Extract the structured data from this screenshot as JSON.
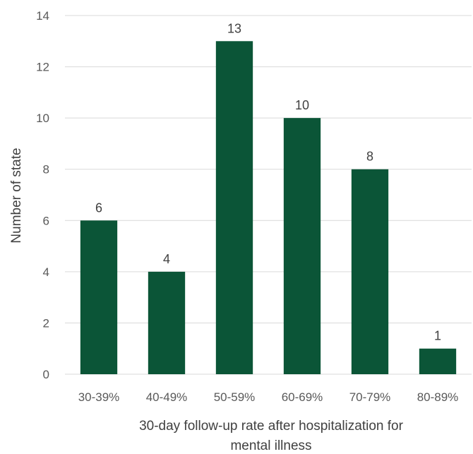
{
  "chart_data": {
    "type": "bar",
    "categories": [
      "30-39%",
      "40-49%",
      "50-59%",
      "60-69%",
      "70-79%",
      "80-89%"
    ],
    "values": [
      6,
      4,
      13,
      10,
      8,
      1
    ],
    "title": "",
    "xlabel_lines": [
      "30-day follow-up rate after hospitalization for",
      "mental illness"
    ],
    "ylabel": "Number of state",
    "ylim": [
      0,
      14
    ],
    "yticks": [
      0,
      2,
      4,
      6,
      8,
      10,
      12,
      14
    ],
    "grid": true,
    "data_labels": true,
    "bar_color": "#0b5537",
    "grid_color": "#d9d9d9"
  }
}
